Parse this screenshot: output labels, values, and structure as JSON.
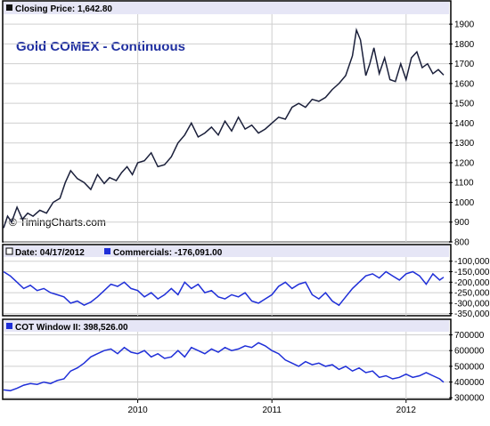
{
  "colors": {
    "price_line": "#1a1f3a",
    "series_line": "#1f2fd8",
    "title_blue": "#1f2fa0",
    "header_bg": "#e6e6f6",
    "grid": "#cfcfcf",
    "frame": "#000000"
  },
  "chart_data": [
    {
      "type": "line",
      "header": "Closing Price: 1,642.80",
      "title": "Gold COMEX - Continuous",
      "watermark": "© TimingCharts.com",
      "ylim": [
        800,
        1950
      ],
      "yticks": [
        "800",
        "900",
        "1000",
        "1100",
        "1200",
        "1300",
        "1400",
        "1500",
        "1600",
        "1700",
        "1800",
        "1900"
      ],
      "x": [
        2009.0,
        2009.03,
        2009.06,
        2009.1,
        2009.14,
        2009.18,
        2009.22,
        2009.27,
        2009.32,
        2009.37,
        2009.42,
        2009.46,
        2009.5,
        2009.55,
        2009.6,
        2009.65,
        2009.7,
        2009.75,
        2009.79,
        2009.84,
        2009.88,
        2009.92,
        2009.96,
        2010.0,
        2010.05,
        2010.1,
        2010.15,
        2010.2,
        2010.25,
        2010.3,
        2010.35,
        2010.4,
        2010.45,
        2010.5,
        2010.55,
        2010.6,
        2010.65,
        2010.7,
        2010.75,
        2010.8,
        2010.85,
        2010.9,
        2010.95,
        2011.0,
        2011.05,
        2011.1,
        2011.15,
        2011.2,
        2011.25,
        2011.3,
        2011.35,
        2011.4,
        2011.45,
        2011.5,
        2011.55,
        2011.6,
        2011.63,
        2011.66,
        2011.7,
        2011.73,
        2011.76,
        2011.8,
        2011.84,
        2011.88,
        2011.92,
        2011.96,
        2012.0,
        2012.04,
        2012.08,
        2012.12,
        2012.16,
        2012.2,
        2012.24,
        2012.28
      ],
      "values": [
        870,
        930,
        900,
        975,
        915,
        945,
        930,
        960,
        945,
        1000,
        1020,
        1100,
        1160,
        1120,
        1100,
        1065,
        1140,
        1095,
        1125,
        1110,
        1150,
        1180,
        1140,
        1200,
        1210,
        1250,
        1180,
        1190,
        1230,
        1300,
        1340,
        1400,
        1330,
        1350,
        1380,
        1340,
        1410,
        1360,
        1430,
        1370,
        1390,
        1350,
        1370,
        1400,
        1430,
        1420,
        1480,
        1500,
        1480,
        1520,
        1510,
        1530,
        1570,
        1600,
        1640,
        1740,
        1870,
        1820,
        1640,
        1700,
        1780,
        1650,
        1730,
        1620,
        1610,
        1700,
        1620,
        1730,
        1760,
        1680,
        1700,
        1650,
        1670,
        1642.8
      ],
      "series": [
        {
          "values": "closing price"
        }
      ]
    },
    {
      "type": "line",
      "header_date": "Date: 04/17/2012",
      "header_series": "Commercials: -176,091.00",
      "ylim": [
        -360000,
        -80000
      ],
      "yticks": [
        "-100,000",
        "-150,000",
        "-200,000",
        "-250,000",
        "-300,000",
        "-350,000"
      ],
      "x": [
        2009.0,
        2009.05,
        2009.1,
        2009.15,
        2009.2,
        2009.25,
        2009.3,
        2009.35,
        2009.4,
        2009.45,
        2009.5,
        2009.55,
        2009.6,
        2009.65,
        2009.7,
        2009.75,
        2009.8,
        2009.85,
        2009.9,
        2009.95,
        2010.0,
        2010.05,
        2010.1,
        2010.15,
        2010.2,
        2010.25,
        2010.3,
        2010.35,
        2010.4,
        2010.45,
        2010.5,
        2010.55,
        2010.6,
        2010.65,
        2010.7,
        2010.75,
        2010.8,
        2010.85,
        2010.9,
        2010.95,
        2011.0,
        2011.05,
        2011.1,
        2011.15,
        2011.2,
        2011.25,
        2011.3,
        2011.35,
        2011.4,
        2011.45,
        2011.5,
        2011.55,
        2011.6,
        2011.65,
        2011.7,
        2011.75,
        2011.8,
        2011.85,
        2011.9,
        2011.95,
        2012.0,
        2012.05,
        2012.1,
        2012.15,
        2012.2,
        2012.25,
        2012.28
      ],
      "values": [
        -150000,
        -170000,
        -200000,
        -230000,
        -215000,
        -240000,
        -230000,
        -250000,
        -260000,
        -270000,
        -300000,
        -290000,
        -310000,
        -295000,
        -270000,
        -240000,
        -210000,
        -220000,
        -200000,
        -230000,
        -240000,
        -270000,
        -250000,
        -280000,
        -260000,
        -230000,
        -260000,
        -200000,
        -230000,
        -210000,
        -250000,
        -240000,
        -270000,
        -280000,
        -260000,
        -270000,
        -250000,
        -290000,
        -300000,
        -280000,
        -260000,
        -220000,
        -200000,
        -230000,
        -210000,
        -200000,
        -260000,
        -280000,
        -250000,
        -290000,
        -310000,
        -270000,
        -230000,
        -200000,
        -170000,
        -160000,
        -180000,
        -150000,
        -170000,
        -190000,
        -160000,
        -150000,
        -170000,
        -210000,
        -160000,
        -190000,
        -176091
      ],
      "series": [
        {
          "name": "Commercials"
        }
      ]
    },
    {
      "type": "line",
      "header_series": "COT Window II: 398,526.00",
      "ylim": [
        290000,
        720000
      ],
      "yticks": [
        "300000",
        "400000",
        "500000",
        "600000",
        "700000"
      ],
      "xticks": [
        "2010",
        "2011",
        "2012"
      ],
      "x": [
        2009.0,
        2009.05,
        2009.1,
        2009.15,
        2009.2,
        2009.25,
        2009.3,
        2009.35,
        2009.4,
        2009.45,
        2009.5,
        2009.55,
        2009.6,
        2009.65,
        2009.7,
        2009.75,
        2009.8,
        2009.85,
        2009.9,
        2009.95,
        2010.0,
        2010.05,
        2010.1,
        2010.15,
        2010.2,
        2010.25,
        2010.3,
        2010.35,
        2010.4,
        2010.45,
        2010.5,
        2010.55,
        2010.6,
        2010.65,
        2010.7,
        2010.75,
        2010.8,
        2010.85,
        2010.9,
        2010.95,
        2011.0,
        2011.05,
        2011.1,
        2011.15,
        2011.2,
        2011.25,
        2011.3,
        2011.35,
        2011.4,
        2011.45,
        2011.5,
        2011.55,
        2011.6,
        2011.65,
        2011.7,
        2011.75,
        2011.8,
        2011.85,
        2011.9,
        2011.95,
        2012.0,
        2012.05,
        2012.1,
        2012.15,
        2012.2,
        2012.25,
        2012.28
      ],
      "values": [
        350000,
        345000,
        360000,
        380000,
        390000,
        385000,
        400000,
        390000,
        410000,
        420000,
        470000,
        490000,
        520000,
        560000,
        580000,
        600000,
        610000,
        580000,
        620000,
        590000,
        580000,
        600000,
        560000,
        580000,
        550000,
        560000,
        600000,
        560000,
        620000,
        600000,
        580000,
        610000,
        590000,
        620000,
        600000,
        610000,
        630000,
        620000,
        650000,
        630000,
        600000,
        580000,
        540000,
        520000,
        500000,
        530000,
        510000,
        520000,
        500000,
        510000,
        480000,
        500000,
        470000,
        490000,
        460000,
        470000,
        430000,
        440000,
        420000,
        430000,
        450000,
        430000,
        440000,
        460000,
        440000,
        420000,
        398526
      ],
      "series": [
        {
          "name": "COT Window II"
        }
      ]
    }
  ]
}
